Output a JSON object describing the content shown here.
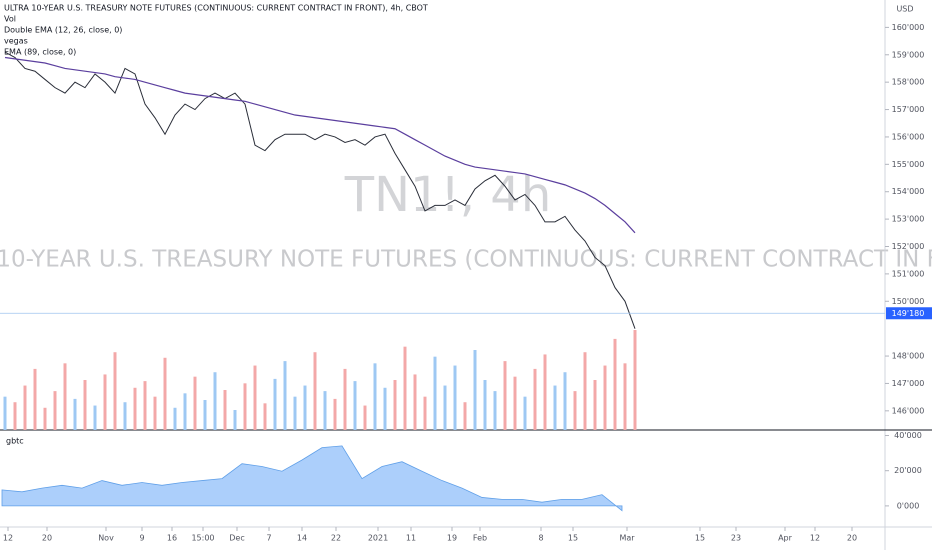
{
  "chart_data": {
    "type": "line",
    "title": "ULTRA 10-YEAR U.S. TREASURY NOTE FUTURES (CONTINUOUS: CURRENT CONTRACT IN FRONT), 4h, CBOT",
    "watermark_symbol": "TN1!, 4h",
    "watermark_description": "ULTRA 10-YEAR U.S. TREASURY NOTE FUTURES (CONTINUOUS: CURRENT CONTRACT IN FRONT)",
    "indicators": [
      "Vol",
      "Double EMA (12, 26, close, 0)",
      "vegas",
      "EMA (89, close, 0)"
    ],
    "currency": "USD",
    "time_labels": [
      "12",
      "20",
      "Nov",
      "9",
      "16",
      "15:00",
      "Dec",
      "7",
      "14",
      "22",
      "2021",
      "11",
      "19",
      "Feb",
      "8",
      "15",
      "Mar",
      "15",
      "23",
      "Apr",
      "12",
      "20"
    ],
    "ylim": [
      145.3,
      161
    ],
    "yticks": [
      {
        "value": 160,
        "label": "160'000"
      },
      {
        "value": 159,
        "label": "159'000"
      },
      {
        "value": 158,
        "label": "158'000"
      },
      {
        "value": 157,
        "label": "157'000"
      },
      {
        "value": 156,
        "label": "156'000"
      },
      {
        "value": 155,
        "label": "155'000"
      },
      {
        "value": 154,
        "label": "154'000"
      },
      {
        "value": 153,
        "label": "153'000"
      },
      {
        "value": 152,
        "label": "152'000"
      },
      {
        "value": 151,
        "label": "151'000"
      },
      {
        "value": 150,
        "label": "150'000"
      },
      {
        "value": 148,
        "label": "148'000"
      },
      {
        "value": 147,
        "label": "147'000"
      },
      {
        "value": 146,
        "label": "146'000"
      }
    ],
    "last_price": {
      "value": 149.5625,
      "label": "149'180"
    },
    "series": [
      {
        "color": "#2a2e39",
        "values": [
          159.1,
          158.9,
          158.5,
          158.4,
          158.1,
          157.8,
          157.6,
          158.0,
          157.8,
          158.3,
          158.0,
          157.6,
          158.5,
          158.3,
          157.2,
          156.7,
          156.1,
          156.8,
          157.2,
          157.0,
          157.4,
          157.6,
          157.4,
          157.6,
          157.2,
          155.7,
          155.5,
          155.9,
          156.1,
          156.1,
          156.1,
          155.9,
          156.1,
          156.0,
          155.8,
          155.9,
          155.7,
          156.0,
          156.1,
          155.4,
          154.8,
          154.2,
          153.3,
          153.5,
          153.5,
          153.7,
          153.5,
          154.1,
          154.4,
          154.6,
          154.2,
          153.7,
          153.9,
          153.5,
          152.9,
          152.9,
          153.1,
          152.6,
          152.2,
          151.6,
          151.3,
          150.5,
          150.0,
          149.0
        ]
      },
      {
        "color": "#5b3f9e",
        "values": [
          158.9,
          158.85,
          158.8,
          158.75,
          158.7,
          158.6,
          158.5,
          158.45,
          158.4,
          158.35,
          158.3,
          158.2,
          158.15,
          158.1,
          158.0,
          157.9,
          157.8,
          157.7,
          157.6,
          157.55,
          157.5,
          157.45,
          157.4,
          157.35,
          157.3,
          157.2,
          157.1,
          157.0,
          156.9,
          156.8,
          156.75,
          156.7,
          156.65,
          156.6,
          156.55,
          156.5,
          156.45,
          156.4,
          156.35,
          156.3,
          156.1,
          155.9,
          155.7,
          155.5,
          155.3,
          155.15,
          155.0,
          154.9,
          154.85,
          154.8,
          154.75,
          154.7,
          154.65,
          154.55,
          154.45,
          154.35,
          154.25,
          154.1,
          153.95,
          153.75,
          153.5,
          153.2,
          152.9,
          152.5
        ]
      }
    ],
    "volume": [
      30,
      25,
      40,
      55,
      20,
      35,
      60,
      28,
      45,
      22,
      50,
      70,
      25,
      38,
      44,
      30,
      65,
      20,
      33,
      48,
      27,
      52,
      36,
      18,
      42,
      58,
      24,
      46,
      62,
      30,
      40,
      70,
      35,
      28,
      55,
      44,
      22,
      60,
      38,
      45,
      75,
      50,
      30,
      66,
      40,
      58,
      25,
      72,
      45,
      35,
      62,
      48,
      30,
      55,
      68,
      40,
      52,
      35,
      70,
      45,
      58,
      82,
      60,
      90
    ],
    "lower_pane": {
      "name": "gbtc",
      "ylim": [
        -12,
        42
      ],
      "yticks": [
        {
          "value": 40,
          "label": "40'000"
        },
        {
          "value": 20,
          "label": "20'000"
        },
        {
          "value": 0,
          "label": "0'000"
        }
      ],
      "color": "#90bff9",
      "values": [
        9.1,
        8.0,
        10.1,
        11.7,
        10.1,
        14.4,
        11.7,
        13.3,
        11.7,
        13.3,
        14.4,
        15.5,
        24.0,
        22.4,
        19.7,
        26.1,
        33.1,
        34.1,
        15.5,
        22.4,
        25.1,
        19.7,
        14.4,
        10.1,
        4.8,
        3.7,
        3.7,
        2.1,
        3.7,
        3.7,
        6.4,
        -2.7
      ]
    }
  }
}
